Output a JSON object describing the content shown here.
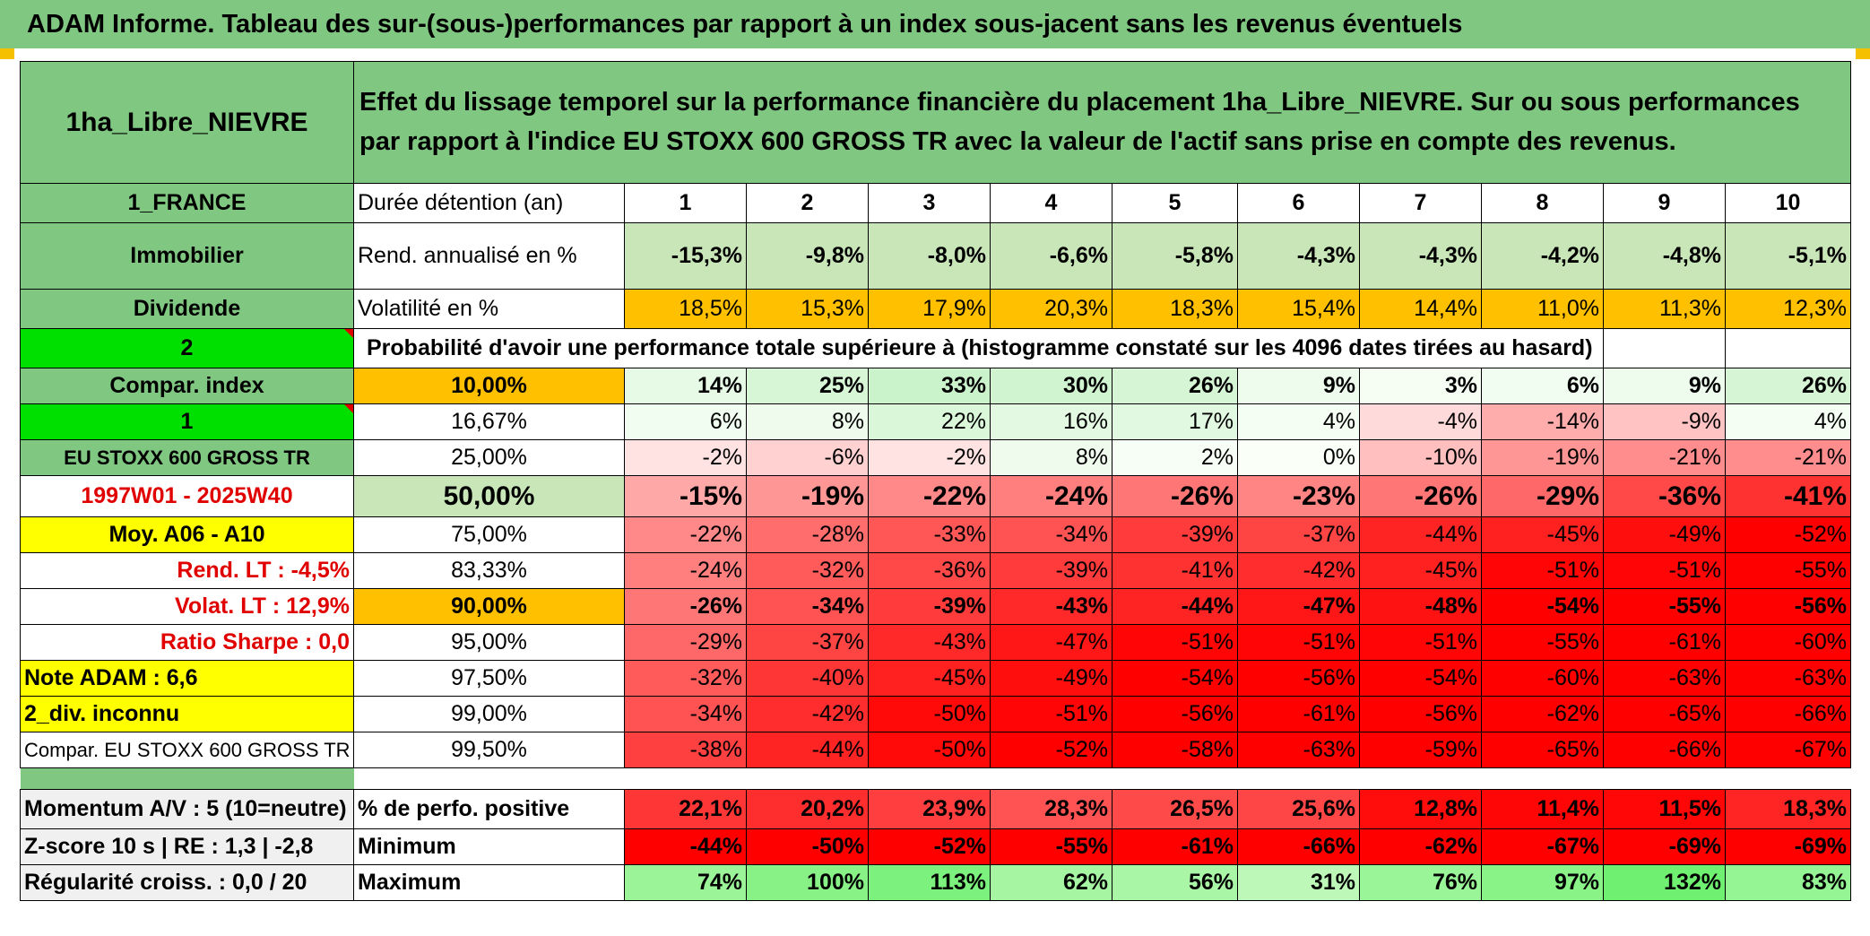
{
  "title": "ADAM Informe. Tableau des sur-(sous-)performances par rapport à un index sous-jacent sans les revenus éventuels",
  "fund_name": "1ha_Libre_NIEVRE",
  "description": "Effet du lissage temporel sur la performance financière du placement 1ha_Libre_NIEVRE. Sur ou sous performances par rapport à l'indice EU STOXX 600 GROSS TR avec la valeur de l'actif sans prise en compte des revenus.",
  "left": {
    "country": "1_FRANCE",
    "category": "Immobilier",
    "dividend": "Dividende",
    "num2": "2",
    "compar_index": "Compar. index",
    "num1": "1",
    "index_name": "EU STOXX 600 GROSS TR",
    "period": "1997W01 - 2025W40",
    "moy": "Moy. A06 - A10",
    "rend_lt": "Rend. LT :    -4,5%",
    "volat_lt": "Volat. LT :    12,9%",
    "sharpe": "Ratio Sharpe :    0,0",
    "note": "Note ADAM : 6,6",
    "div": "2_div. inconnu",
    "compar_full": "Compar. EU STOXX 600 GROSS TR",
    "momentum": "Momentum A/V : 5 (10=neutre)",
    "zscore": "Z-score 10 s | RE : 1,3 | -2,8",
    "regularite": "Régularité croiss. : 0,0 / 20"
  },
  "labels": {
    "duree": "Durée détention (an)",
    "rend": "Rend. annualisé en %",
    "volat": "Volatilité en %",
    "proba": "Probabilité d'avoir une performance totale supérieure à (histogramme constaté sur les 4096 dates tirées au hasard)",
    "perfo_pos": "% de perfo. positive",
    "minimum": "Minimum",
    "maximum": "Maximum"
  },
  "years": [
    "1",
    "2",
    "3",
    "4",
    "5",
    "6",
    "7",
    "8",
    "9",
    "10"
  ],
  "rend": [
    "-15,3%",
    "-9,8%",
    "-8,0%",
    "-6,6%",
    "-5,8%",
    "-4,3%",
    "-4,3%",
    "-4,2%",
    "-4,8%",
    "-5,1%"
  ],
  "volat": [
    "18,5%",
    "15,3%",
    "17,9%",
    "20,3%",
    "18,3%",
    "15,4%",
    "14,4%",
    "11,0%",
    "11,3%",
    "12,3%"
  ],
  "volat_highlight": [
    true,
    false,
    true,
    true,
    true,
    false,
    false,
    false,
    false,
    false
  ],
  "quantiles": [
    {
      "level": "10,00%",
      "values": [
        "14%",
        "25%",
        "33%",
        "30%",
        "26%",
        "9%",
        "3%",
        "6%",
        "9%",
        "26%"
      ]
    },
    {
      "level": "16,67%",
      "values": [
        "6%",
        "8%",
        "22%",
        "16%",
        "17%",
        "4%",
        "-4%",
        "-14%",
        "-9%",
        "4%"
      ]
    },
    {
      "level": "25,00%",
      "values": [
        "-2%",
        "-6%",
        "-2%",
        "8%",
        "2%",
        "0%",
        "-10%",
        "-19%",
        "-21%",
        "-21%"
      ]
    },
    {
      "level": "50,00%",
      "values": [
        "-15%",
        "-19%",
        "-22%",
        "-24%",
        "-26%",
        "-23%",
        "-26%",
        "-29%",
        "-36%",
        "-41%"
      ]
    },
    {
      "level": "75,00%",
      "values": [
        "-22%",
        "-28%",
        "-33%",
        "-34%",
        "-39%",
        "-37%",
        "-44%",
        "-45%",
        "-49%",
        "-52%"
      ]
    },
    {
      "level": "83,33%",
      "values": [
        "-24%",
        "-32%",
        "-36%",
        "-39%",
        "-41%",
        "-42%",
        "-45%",
        "-51%",
        "-51%",
        "-55%"
      ]
    },
    {
      "level": "90,00%",
      "values": [
        "-26%",
        "-34%",
        "-39%",
        "-43%",
        "-44%",
        "-47%",
        "-48%",
        "-54%",
        "-55%",
        "-56%"
      ]
    },
    {
      "level": "95,00%",
      "values": [
        "-29%",
        "-37%",
        "-43%",
        "-47%",
        "-51%",
        "-51%",
        "-51%",
        "-55%",
        "-61%",
        "-60%"
      ]
    },
    {
      "level": "97,50%",
      "values": [
        "-32%",
        "-40%",
        "-45%",
        "-49%",
        "-54%",
        "-56%",
        "-54%",
        "-60%",
        "-63%",
        "-63%"
      ]
    },
    {
      "level": "99,00%",
      "values": [
        "-34%",
        "-42%",
        "-50%",
        "-51%",
        "-56%",
        "-61%",
        "-56%",
        "-62%",
        "-65%",
        "-66%"
      ]
    },
    {
      "level": "99,50%",
      "values": [
        "-38%",
        "-44%",
        "-50%",
        "-52%",
        "-58%",
        "-63%",
        "-59%",
        "-65%",
        "-66%",
        "-67%"
      ]
    }
  ],
  "perfo_pos": [
    "22,1%",
    "20,2%",
    "23,9%",
    "28,3%",
    "26,5%",
    "25,6%",
    "12,8%",
    "11,4%",
    "11,5%",
    "18,3%"
  ],
  "minimum": [
    "-44%",
    "-50%",
    "-52%",
    "-55%",
    "-61%",
    "-66%",
    "-62%",
    "-67%",
    "-69%",
    "-69%"
  ],
  "maximum": [
    "74%",
    "100%",
    "113%",
    "62%",
    "56%",
    "31%",
    "76%",
    "97%",
    "132%",
    "83%"
  ],
  "colors": {
    "header_green": "#80c882",
    "bright_green": "#00e000",
    "yellow": "#ffff00",
    "orange": "#ffc000",
    "red_text": "#e00000",
    "rend_green": "#c8e6b8"
  }
}
